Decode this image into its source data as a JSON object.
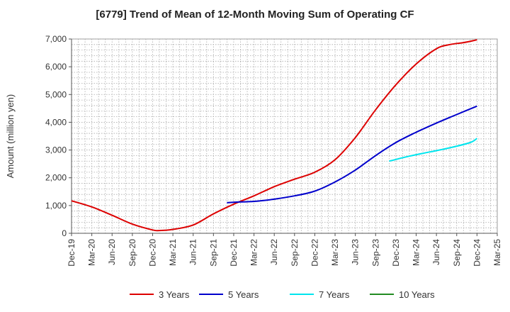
{
  "chart_data": {
    "type": "line",
    "title": "[6779]  Trend of Mean of 12-Month Moving Sum of Operating CF",
    "xlabel": "",
    "ylabel": "Amount (million yen)",
    "ylim": [
      0,
      7000
    ],
    "yticks": [
      0,
      1000,
      2000,
      3000,
      4000,
      5000,
      6000,
      7000
    ],
    "ytick_labels": [
      "0",
      "1,000",
      "2,000",
      "3,000",
      "4,000",
      "5,000",
      "6,000",
      "7,000"
    ],
    "x_tick_labels": [
      "Dec-19",
      "Mar-20",
      "Jun-20",
      "Sep-20",
      "Dec-20",
      "Mar-21",
      "Jun-21",
      "Sep-21",
      "Dec-21",
      "Mar-22",
      "Jun-22",
      "Sep-22",
      "Dec-22",
      "Mar-23",
      "Jun-23",
      "Sep-23",
      "Dec-23",
      "Mar-24",
      "Jun-24",
      "Sep-24",
      "Dec-24",
      "Mar-25"
    ],
    "x_month_range": [
      0,
      63
    ],
    "grid": true,
    "legend_position": "bottom",
    "series": [
      {
        "name": "3 Years",
        "color": "#dd0000",
        "points": [
          [
            0,
            1170
          ],
          [
            3,
            950
          ],
          [
            6,
            650
          ],
          [
            9,
            330
          ],
          [
            12,
            120
          ],
          [
            13,
            100
          ],
          [
            15,
            140
          ],
          [
            18,
            300
          ],
          [
            21,
            700
          ],
          [
            24,
            1050
          ],
          [
            27,
            1350
          ],
          [
            30,
            1680
          ],
          [
            33,
            1950
          ],
          [
            36,
            2200
          ],
          [
            39,
            2650
          ],
          [
            42,
            3450
          ],
          [
            45,
            4450
          ],
          [
            48,
            5350
          ],
          [
            51,
            6100
          ],
          [
            54,
            6650
          ],
          [
            56,
            6800
          ],
          [
            58,
            6870
          ],
          [
            60,
            6970
          ]
        ]
      },
      {
        "name": "5 Years",
        "color": "#0000cc",
        "points": [
          [
            23,
            1100
          ],
          [
            24,
            1120
          ],
          [
            27,
            1150
          ],
          [
            30,
            1230
          ],
          [
            33,
            1350
          ],
          [
            36,
            1520
          ],
          [
            39,
            1850
          ],
          [
            42,
            2280
          ],
          [
            45,
            2800
          ],
          [
            48,
            3270
          ],
          [
            51,
            3640
          ],
          [
            54,
            3970
          ],
          [
            57,
            4280
          ],
          [
            60,
            4580
          ]
        ]
      },
      {
        "name": "7 Years",
        "color": "#00e5ee",
        "points": [
          [
            47,
            2600
          ],
          [
            50,
            2780
          ],
          [
            53,
            2930
          ],
          [
            56,
            3080
          ],
          [
            59,
            3270
          ],
          [
            60,
            3420
          ]
        ]
      },
      {
        "name": "10 Years",
        "color": "#228b22",
        "points": []
      }
    ]
  }
}
